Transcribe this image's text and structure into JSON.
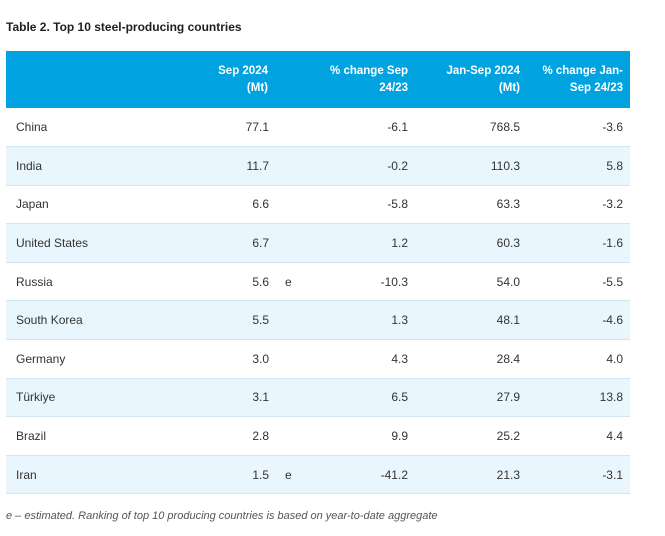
{
  "title": "Table 2. Top 10 steel-producing countries",
  "columns": {
    "country": "",
    "sep_line1": "Sep 2024",
    "sep_line2": "(Mt)",
    "change_sep_line1": "% change Sep",
    "change_sep_line2": "24/23",
    "jansep_line1": "Jan-Sep 2024",
    "jansep_line2": "(Mt)",
    "change_jan_line1": "% change Jan-",
    "change_jan_line2": "Sep 24/23"
  },
  "rows": [
    {
      "country": "China",
      "sep": "77.1",
      "flag": "",
      "change_sep": "-6.1",
      "jansep": "768.5",
      "change_jan": "-3.6"
    },
    {
      "country": "India",
      "sep": "11.7",
      "flag": "",
      "change_sep": "-0.2",
      "jansep": "110.3",
      "change_jan": "5.8"
    },
    {
      "country": "Japan",
      "sep": "6.6",
      "flag": "",
      "change_sep": "-5.8",
      "jansep": "63.3",
      "change_jan": "-3.2"
    },
    {
      "country": "United States",
      "sep": "6.7",
      "flag": "",
      "change_sep": "1.2",
      "jansep": "60.3",
      "change_jan": "-1.6"
    },
    {
      "country": "Russia",
      "sep": "5.6",
      "flag": "e",
      "change_sep": "-10.3",
      "jansep": "54.0",
      "change_jan": "-5.5"
    },
    {
      "country": "South Korea",
      "sep": "5.5",
      "flag": "",
      "change_sep": "1.3",
      "jansep": "48.1",
      "change_jan": "-4.6"
    },
    {
      "country": "Germany",
      "sep": "3.0",
      "flag": "",
      "change_sep": "4.3",
      "jansep": "28.4",
      "change_jan": "4.0"
    },
    {
      "country": "Türkiye",
      "sep": "3.1",
      "flag": "",
      "change_sep": "6.5",
      "jansep": "27.9",
      "change_jan": "13.8"
    },
    {
      "country": "Brazil",
      "sep": "2.8",
      "flag": "",
      "change_sep": "9.9",
      "jansep": "25.2",
      "change_jan": "4.4"
    },
    {
      "country": "Iran",
      "sep": "1.5",
      "flag": "e",
      "change_sep": "-41.2",
      "jansep": "21.3",
      "change_jan": "-3.1"
    }
  ],
  "footnote": "e – estimated. Ranking of top 10 producing countries is based on year-to-date aggregate",
  "colors": {
    "header_bg": "#00a3e0",
    "stripe_bg": "#e9f6fd"
  }
}
